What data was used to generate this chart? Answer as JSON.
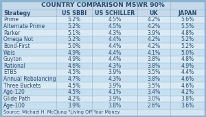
{
  "title": "COUNTRY COMPARISON MSWR 90%",
  "columns": [
    "Strategy",
    "US SBBI",
    "US SCHILLER",
    "UK",
    "JAPAN"
  ],
  "rows": [
    [
      "Prime",
      "5.2%",
      "4.5%",
      "4.2%",
      "5.6%"
    ],
    [
      "Alternate Prime",
      "5.2%",
      "4.5%",
      "4.2%",
      "5.5%"
    ],
    [
      "Parker",
      "5.1%",
      "4.3%",
      "3.9%",
      "4.8%"
    ],
    [
      "Omega Not",
      "5.2%",
      "4.4%",
      "4.2%",
      "5.2%"
    ],
    [
      "Bond-First",
      "5.0%",
      "4.4%",
      "4.2%",
      "5.2%"
    ],
    [
      "Weis",
      "4.9%",
      "4.4%",
      "4.1%",
      "5.0%"
    ],
    [
      "Guyton",
      "4.9%",
      "4.4%",
      "3.8%",
      "4.8%"
    ],
    [
      "Rational",
      "4.6%",
      "4.3%",
      "3.8%",
      "4.9%"
    ],
    [
      "ETBS",
      "4.5%",
      "3.9%",
      "3.5%",
      "4.4%"
    ],
    [
      "Annual Rebalancing",
      "4.7%",
      "4.3%",
      "3.8%",
      "4.6%"
    ],
    [
      "Three Buckets",
      "4.5%",
      "3.9%",
      "3.5%",
      "4.6%"
    ],
    [
      "Age-120",
      "4.5%",
      "4.1%",
      "3.4%",
      "4.2%"
    ],
    [
      "Glide Path",
      "4.2%",
      "3.9%",
      "3.0%",
      "3.8%"
    ],
    [
      "Age-100",
      "3.9%",
      "3.8%",
      "2.6%",
      "3.6%"
    ]
  ],
  "footer": "Source: Michael H. McClung \"Living Off Your Money",
  "header_bg": "#c5d9ea",
  "row_bg_even": "#daeaf5",
  "row_bg_odd": "#c8dff0",
  "footer_bg": "#d5e5f2",
  "border_color": "#8ab4d0",
  "title_bg": "#c5d9ea",
  "text_color": "#2a4a6b",
  "title_fontsize": 6.5,
  "cell_fontsize": 5.5,
  "header_fontsize": 5.8,
  "footer_fontsize": 4.8
}
